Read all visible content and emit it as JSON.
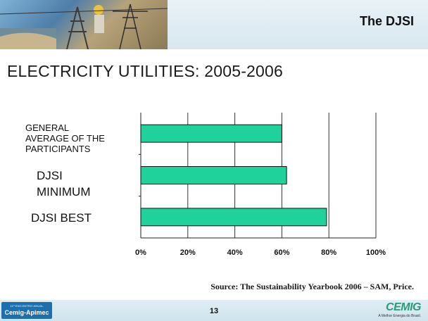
{
  "header": {
    "title": "The DJSI"
  },
  "heading": "ELECTRICITY UTILITIES: 2005-2006",
  "chart_data": {
    "type": "bar",
    "orientation": "horizontal",
    "categories": [
      "GENERAL AVERAGE OF THE PARTICIPANTS",
      "DJSI MINIMUM",
      "DJSI BEST"
    ],
    "category_lines": [
      [
        "GENERAL",
        "AVERAGE OF THE",
        "PARTICIPANTS"
      ],
      [
        "DJSI",
        "MINIMUM"
      ],
      [
        "DJSI BEST"
      ]
    ],
    "values": [
      60,
      62,
      79
    ],
    "xlim": [
      0,
      100
    ],
    "xticks": [
      0,
      20,
      40,
      60,
      80,
      100
    ],
    "xtick_labels": [
      "0%",
      "20%",
      "40%",
      "60%",
      "80%",
      "100%"
    ],
    "grid": true,
    "legend": false,
    "colors": {
      "bar": "#1fd19a",
      "bar_stroke": "#111111",
      "grid": "#333333"
    }
  },
  "source": "Source: The Sustainability Yearbook 2006 – SAM, Price.",
  "footer": {
    "page_number": "13",
    "event_line": "11º ENCONTRO ANUAL",
    "event_name": "Cemig-Apimec",
    "brand_name": "CEMIG",
    "brand_tagline": "A Melhor Energia do Brasil."
  }
}
